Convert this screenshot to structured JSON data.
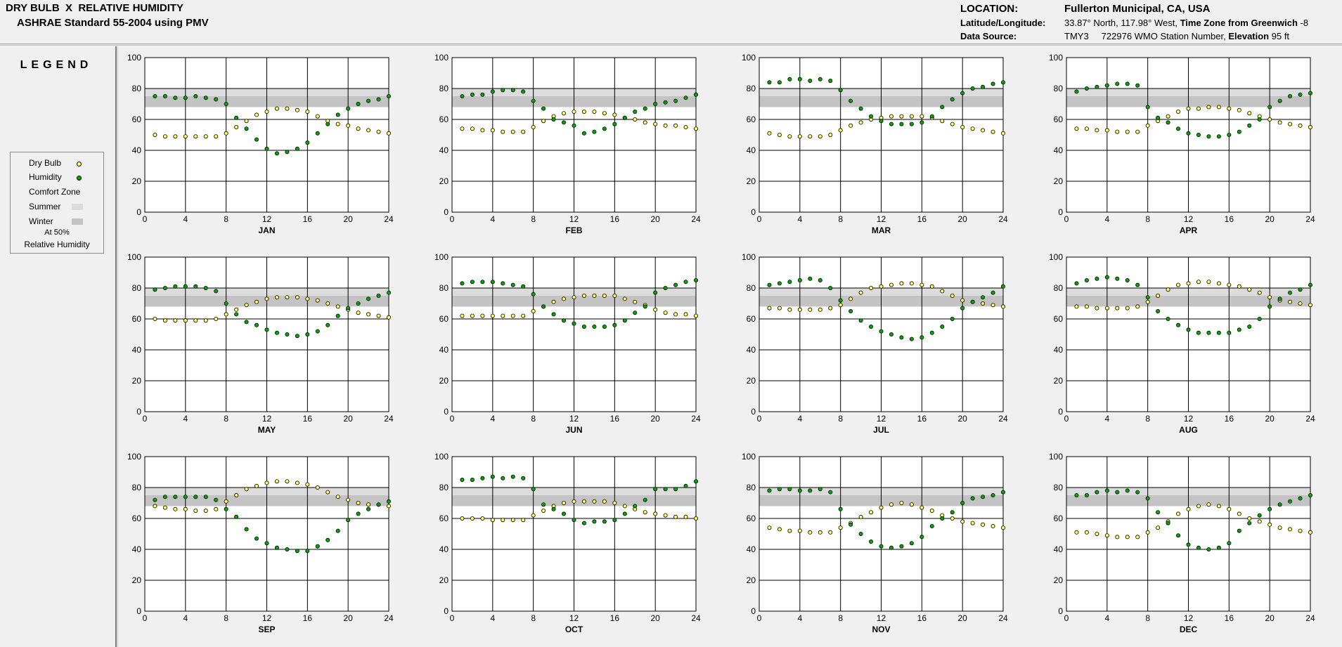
{
  "header": {
    "title_line1": "DRY BULB  X  RELATIVE HUMIDITY",
    "title_line2": "ASHRAE Standard 55-2004 using PMV",
    "location_label": "LOCATION:",
    "location_value": "Fullerton Municipal, CA, USA",
    "latlong_label": "Latitude/Longitude:",
    "latlong_value": "33.87° North, 117.98° West,",
    "timezone_label": "Time Zone from Greenwich",
    "timezone_value": "-8",
    "datasource_label": "Data Source:",
    "datasource_value": "TMY3",
    "station_value": "722976 WMO Station Number,",
    "elevation_label": "Elevation",
    "elevation_value": "95 ft"
  },
  "legend": {
    "title": "LEGEND",
    "dry_bulb_label": "Dry Bulb",
    "humidity_label": "Humidity",
    "comfort_zone_label": "Comfort Zone",
    "summer_label": "Summer",
    "winter_label": "Winter",
    "note_line1": "At 50%",
    "note_line2": "Relative Humidity"
  },
  "chart_data": {
    "type": "scatter",
    "x_ticks": [
      0,
      4,
      8,
      12,
      16,
      20,
      24
    ],
    "y_ticks": [
      0,
      20,
      40,
      60,
      80,
      100
    ],
    "xlim": [
      0,
      24
    ],
    "ylim": [
      0,
      100
    ],
    "grid": true,
    "hours": [
      1,
      2,
      3,
      4,
      5,
      6,
      7,
      8,
      9,
      10,
      11,
      12,
      13,
      14,
      15,
      16,
      17,
      18,
      19,
      20,
      21,
      22,
      23,
      24
    ],
    "comfort_zone": {
      "summer": [
        75,
        80
      ],
      "winter": [
        68,
        75
      ]
    },
    "colors": {
      "dry_bulb": "#ffff66",
      "humidity": "#00aa00",
      "summer_zone": "#dcdcdc",
      "winter_zone": "#c3c3c3"
    },
    "months": [
      {
        "name": "JAN",
        "dry_bulb": [
          50,
          49,
          49,
          49,
          49,
          49,
          49,
          51,
          55,
          59,
          63,
          65,
          67,
          67,
          66,
          65,
          62,
          59,
          57,
          56,
          54,
          53,
          52,
          51
        ],
        "humidity": [
          75,
          75,
          74,
          74,
          75,
          74,
          73,
          70,
          61,
          54,
          47,
          41,
          38,
          39,
          41,
          45,
          51,
          57,
          63,
          67,
          70,
          72,
          73,
          75
        ]
      },
      {
        "name": "FEB",
        "dry_bulb": [
          54,
          54,
          53,
          53,
          52,
          52,
          52,
          55,
          59,
          62,
          64,
          65,
          65,
          65,
          64,
          63,
          61,
          60,
          58,
          57,
          56,
          56,
          55,
          54
        ],
        "humidity": [
          75,
          76,
          76,
          78,
          79,
          79,
          78,
          72,
          67,
          60,
          58,
          56,
          51,
          52,
          54,
          57,
          61,
          65,
          67,
          70,
          71,
          72,
          74,
          76
        ]
      },
      {
        "name": "MAR",
        "dry_bulb": [
          51,
          50,
          49,
          49,
          49,
          49,
          50,
          53,
          56,
          58,
          60,
          61,
          62,
          62,
          62,
          62,
          61,
          59,
          57,
          55,
          54,
          53,
          52,
          51
        ],
        "humidity": [
          84,
          84,
          86,
          86,
          85,
          86,
          85,
          79,
          72,
          67,
          62,
          59,
          57,
          57,
          57,
          58,
          62,
          68,
          73,
          77,
          80,
          81,
          83,
          84
        ]
      },
      {
        "name": "APR",
        "dry_bulb": [
          54,
          54,
          53,
          53,
          52,
          52,
          52,
          56,
          59,
          62,
          65,
          67,
          67,
          68,
          68,
          67,
          66,
          64,
          62,
          60,
          58,
          57,
          56,
          55
        ],
        "humidity": [
          78,
          80,
          81,
          82,
          83,
          83,
          82,
          68,
          61,
          58,
          54,
          51,
          50,
          49,
          49,
          50,
          52,
          56,
          60,
          68,
          72,
          75,
          76,
          77
        ]
      },
      {
        "name": "MAY",
        "dry_bulb": [
          60,
          59,
          59,
          59,
          59,
          59,
          60,
          63,
          66,
          69,
          71,
          73,
          74,
          74,
          74,
          73,
          72,
          70,
          68,
          66,
          64,
          63,
          62,
          61
        ],
        "humidity": [
          79,
          80,
          81,
          81,
          81,
          80,
          78,
          70,
          63,
          58,
          56,
          53,
          51,
          50,
          49,
          50,
          52,
          56,
          62,
          67,
          70,
          73,
          75,
          77
        ]
      },
      {
        "name": "JUN",
        "dry_bulb": [
          62,
          62,
          62,
          62,
          62,
          62,
          62,
          65,
          68,
          71,
          73,
          74,
          75,
          75,
          75,
          75,
          73,
          71,
          69,
          66,
          64,
          63,
          63,
          62
        ],
        "humidity": [
          83,
          84,
          84,
          84,
          83,
          82,
          81,
          76,
          68,
          63,
          59,
          57,
          55,
          55,
          55,
          56,
          59,
          64,
          68,
          77,
          80,
          82,
          84,
          85
        ]
      },
      {
        "name": "JUL",
        "dry_bulb": [
          67,
          67,
          66,
          66,
          66,
          66,
          67,
          69,
          73,
          77,
          80,
          81,
          82,
          83,
          83,
          82,
          81,
          78,
          75,
          72,
          71,
          70,
          69,
          68
        ],
        "humidity": [
          82,
          83,
          84,
          85,
          86,
          85,
          80,
          72,
          65,
          59,
          55,
          52,
          50,
          48,
          47,
          48,
          51,
          55,
          60,
          67,
          71,
          74,
          77,
          81
        ]
      },
      {
        "name": "AUG",
        "dry_bulb": [
          68,
          68,
          67,
          67,
          67,
          67,
          68,
          71,
          75,
          79,
          82,
          83,
          84,
          84,
          83,
          82,
          81,
          79,
          77,
          74,
          72,
          71,
          70,
          69
        ],
        "humidity": [
          83,
          85,
          86,
          87,
          86,
          85,
          82,
          74,
          65,
          60,
          56,
          53,
          51,
          51,
          51,
          51,
          53,
          55,
          60,
          68,
          73,
          77,
          79,
          82
        ]
      },
      {
        "name": "SEP",
        "dry_bulb": [
          68,
          67,
          66,
          66,
          65,
          65,
          66,
          71,
          75,
          79,
          81,
          83,
          84,
          84,
          83,
          82,
          80,
          77,
          74,
          72,
          70,
          69,
          69,
          68
        ],
        "humidity": [
          72,
          74,
          74,
          74,
          74,
          74,
          72,
          66,
          61,
          53,
          47,
          44,
          41,
          40,
          39,
          39,
          42,
          46,
          52,
          59,
          63,
          66,
          69,
          71
        ]
      },
      {
        "name": "OCT",
        "dry_bulb": [
          60,
          60,
          60,
          59,
          59,
          59,
          59,
          62,
          65,
          68,
          70,
          71,
          71,
          71,
          71,
          70,
          68,
          66,
          64,
          63,
          62,
          61,
          61,
          60
        ],
        "humidity": [
          85,
          85,
          86,
          87,
          86,
          87,
          86,
          79,
          69,
          66,
          63,
          59,
          57,
          58,
          58,
          59,
          63,
          68,
          72,
          79,
          79,
          79,
          81,
          84
        ]
      },
      {
        "name": "NOV",
        "dry_bulb": [
          54,
          53,
          52,
          52,
          51,
          51,
          51,
          54,
          57,
          61,
          64,
          67,
          69,
          70,
          69,
          67,
          65,
          62,
          60,
          58,
          57,
          56,
          55,
          54
        ],
        "humidity": [
          78,
          79,
          79,
          78,
          78,
          79,
          77,
          66,
          56,
          50,
          45,
          42,
          41,
          42,
          44,
          48,
          55,
          60,
          64,
          70,
          73,
          74,
          75,
          77
        ]
      },
      {
        "name": "DEC",
        "dry_bulb": [
          51,
          51,
          50,
          49,
          48,
          48,
          48,
          51,
          54,
          58,
          63,
          66,
          68,
          69,
          68,
          66,
          63,
          60,
          58,
          56,
          54,
          53,
          52,
          51
        ],
        "humidity": [
          75,
          75,
          77,
          78,
          77,
          78,
          77,
          73,
          64,
          57,
          49,
          43,
          41,
          40,
          41,
          44,
          52,
          57,
          62,
          66,
          69,
          71,
          73,
          75
        ]
      }
    ]
  }
}
